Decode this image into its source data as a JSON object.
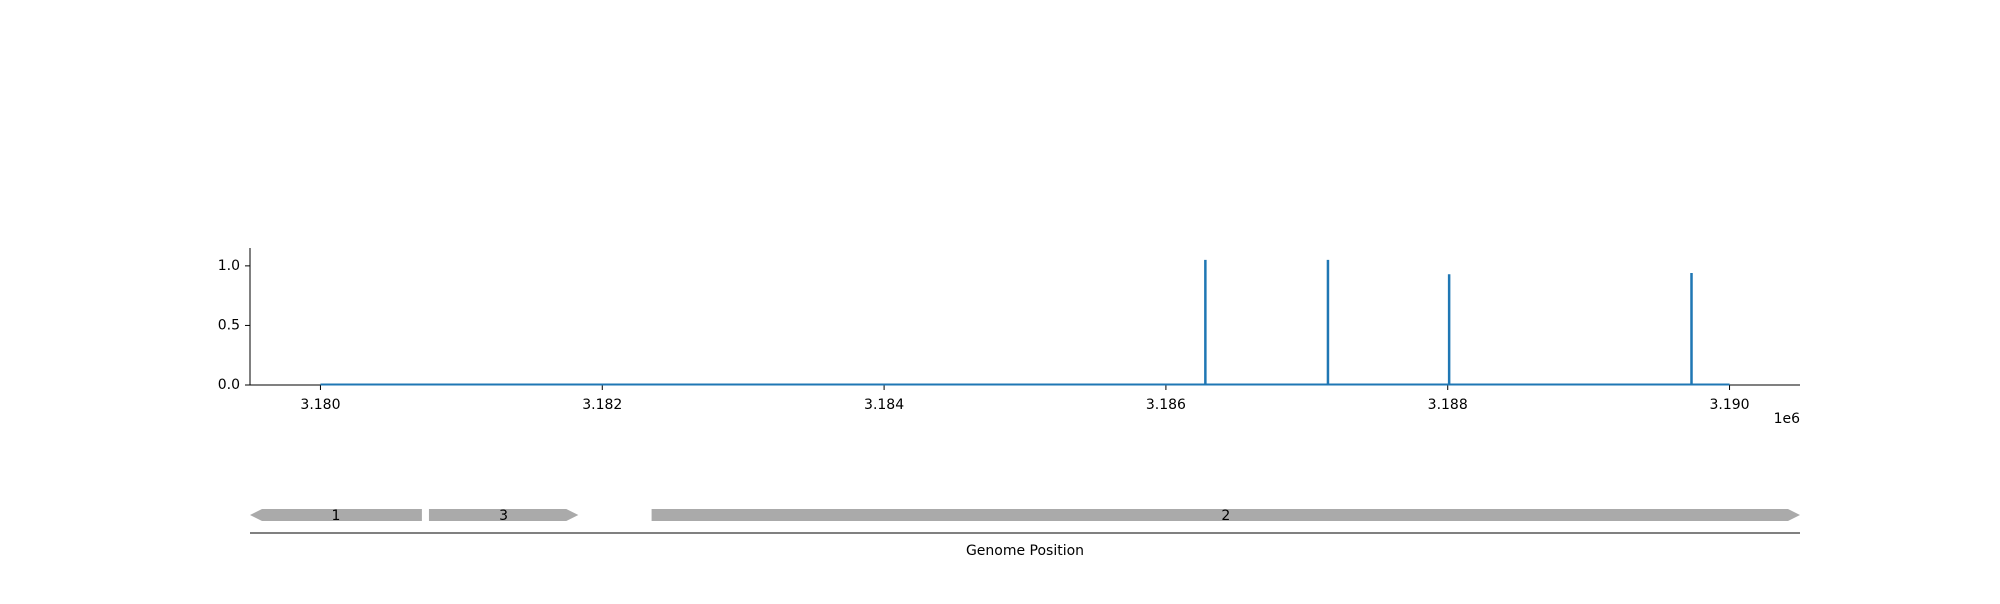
{
  "chart_data": {
    "type": "line",
    "x_offset_label": "1e6",
    "x_ticks": [
      3180000,
      3182000,
      3184000,
      3186000,
      3188000,
      3190000
    ],
    "x_tick_labels": [
      "3.180",
      "3.182",
      "3.184",
      "3.186",
      "3.188",
      "3.190"
    ],
    "xlim": [
      3179500,
      3190500
    ],
    "y_ticks": [
      0.0,
      0.5,
      1.0
    ],
    "y_tick_labels": [
      "0.0",
      "0.5",
      "1.0"
    ],
    "ylim": [
      0,
      1.15
    ],
    "grid": false,
    "series": [
      {
        "color": "#1f77b4",
        "baseline": {
          "x_start": 3180000,
          "x_end": 3190000,
          "y": 0
        },
        "spikes": [
          {
            "x": 3186280,
            "y": 1.05
          },
          {
            "x": 3187150,
            "y": 1.05
          },
          {
            "x": 3188010,
            "y": 0.93
          },
          {
            "x": 3189730,
            "y": 0.94
          }
        ]
      }
    ],
    "genes": [
      {
        "label": "1",
        "start": 3179500,
        "end": 3180720,
        "strand": "-",
        "color": "#aaaaaa"
      },
      {
        "label": "3",
        "start": 3180770,
        "end": 3181830,
        "strand": "+",
        "color": "#aaaaaa"
      },
      {
        "label": "2",
        "start": 3182350,
        "end": 3190500,
        "strand": "+",
        "color": "#aaaaaa"
      }
    ],
    "track_xlabel": "Genome Position"
  }
}
